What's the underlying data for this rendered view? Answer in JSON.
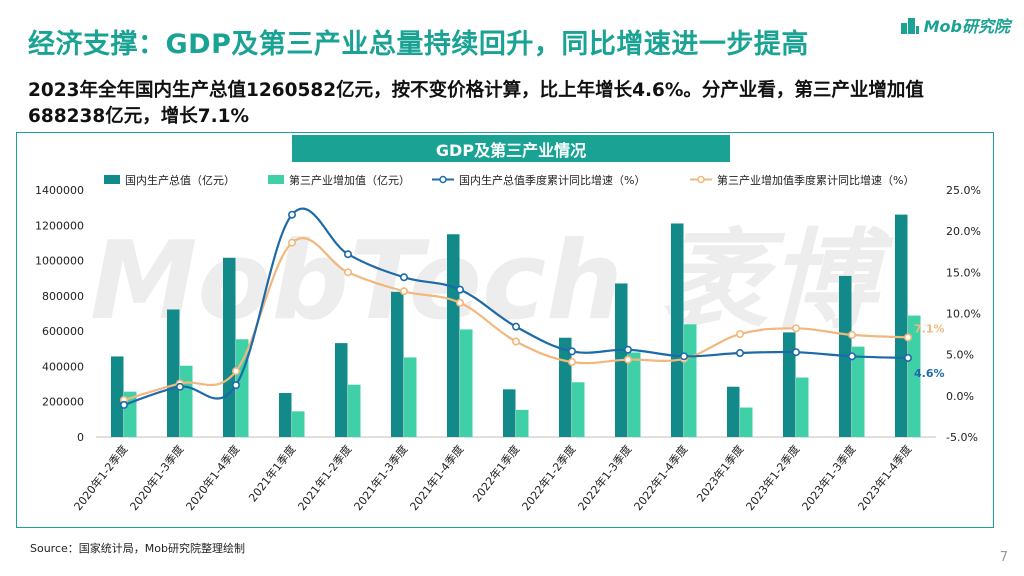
{
  "headline": "经济支撑：GDP及第三产业总量持续回升，同比增速进一步提高",
  "subline": "2023年全年国内生产总值1260582亿元，按不变价格计算，比上年增长4.6%。分产业看，第三产业增加值688238亿元，增长7.1%",
  "logo": {
    "text": "Mob研究院",
    "icon": "building-logo-icon"
  },
  "watermark": "MobTech 袤博",
  "source": "Source：国家统计局，Mob研究院整理绘制",
  "page_number": "7",
  "colors": {
    "accent": "#1aa394",
    "bar1": "#138a8a",
    "bar2": "#3fd0a8",
    "line1": "#1d6aa8",
    "line2": "#f2b77d"
  },
  "chart_data": {
    "type": "bar",
    "title": "GDP及第三产业情况",
    "categories": [
      "2020年1-2季度",
      "2020年1-3季度",
      "2020年1-4季度",
      "2021年1季度",
      "2021年1-2季度",
      "2021年1-3季度",
      "2021年1-4季度",
      "2022年1季度",
      "2022年1-2季度",
      "2022年1-3季度",
      "2022年1-4季度",
      "2023年1季度",
      "2023年1-2季度",
      "2023年1-3季度",
      "2023年1-4季度"
    ],
    "series": [
      {
        "name": "国内生产总值（亿元）",
        "kind": "bar",
        "axis": "left",
        "values": [
          456614,
          722786,
          1015986,
          249310,
          532167,
          823131,
          1149237,
          270178,
          562642,
          870269,
          1210207,
          284997,
          593034,
          913027,
          1260582
        ]
      },
      {
        "name": "第三产业增加值（亿元）",
        "kind": "bar",
        "axis": "left",
        "values": [
          257000,
          404000,
          553977,
          145355,
          296611,
          451000,
          609680,
          154000,
          310000,
          479000,
          638698,
          167000,
          337000,
          512000,
          688238
        ]
      },
      {
        "name": "国内生产总值季度累计同比增速（%）",
        "kind": "line",
        "axis": "right",
        "values": [
          -1.1,
          1.1,
          1.3,
          22.0,
          17.2,
          14.4,
          12.9,
          8.4,
          5.4,
          5.6,
          4.8,
          5.2,
          5.3,
          4.8,
          4.6
        ]
      },
      {
        "name": "第三产业增加值季度累计同比增速（%）",
        "kind": "line",
        "axis": "right",
        "values": [
          -0.5,
          1.5,
          3.0,
          18.6,
          15.0,
          12.7,
          11.3,
          6.6,
          4.1,
          4.4,
          4.5,
          7.5,
          8.2,
          7.4,
          7.1
        ]
      }
    ],
    "y_left": {
      "ylim": [
        0,
        1400000
      ],
      "ticks": [
        "0",
        "200000",
        "400000",
        "600000",
        "800000",
        "1000000",
        "1200000",
        "1400000"
      ]
    },
    "y_right": {
      "ylim": [
        -5,
        25
      ],
      "ticks": [
        "-5.0%",
        "0.0%",
        "5.0%",
        "10.0%",
        "15.0%",
        "20.0%",
        "25.0%"
      ]
    },
    "annotations": [
      {
        "series": 3,
        "index": 14,
        "text": "7.1%"
      },
      {
        "series": 2,
        "index": 14,
        "text": "4.6%"
      }
    ],
    "legend": "top",
    "grid": false
  }
}
